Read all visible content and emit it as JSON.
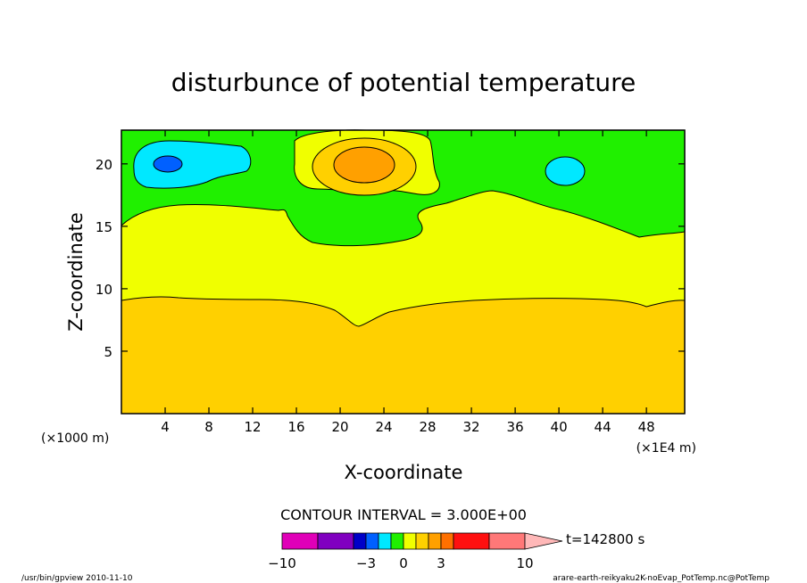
{
  "chart_data": {
    "type": "heatmap",
    "title": "disturbunce of potential temperature",
    "xlabel": "X-coordinate",
    "ylabel": "Z-coordinate",
    "x_unit_left": "(×1000 m)",
    "x_unit_right": "(×1E4 m)",
    "xlim": [
      0,
      51.5
    ],
    "ylim": [
      0,
      22.7
    ],
    "x_ticks": [
      4,
      8,
      12,
      16,
      20,
      24,
      28,
      32,
      36,
      40,
      44,
      48
    ],
    "y_ticks": [
      5,
      10,
      15,
      20
    ],
    "contour_interval_text": "CONTOUR INTERVAL = 3.000E+00",
    "time_label": "t=142800 s",
    "colorbar": {
      "tick_labels": [
        "-10",
        "-3",
        "0",
        "3",
        "10"
      ],
      "colors": [
        "#e000b8",
        "#8000c0",
        "#0000c8",
        "#0060ff",
        "#00e8ff",
        "#20f000",
        "#f0ff00",
        "#ffd000",
        "#ffa000",
        "#ff7000",
        "#ff1010",
        "#ff7878",
        "#ffb8b8"
      ]
    },
    "regions": [
      {
        "name": "band-lowest",
        "color": "#ffd000",
        "range": "0 to 3"
      },
      {
        "name": "band-middle",
        "color": "#f0ff00",
        "range": "0 to 3"
      },
      {
        "name": "band-upper",
        "color": "#20f000",
        "range": "-3 to 0"
      },
      {
        "name": "cold-cell-left",
        "color": "#00e8ff"
      },
      {
        "name": "cold-core-left",
        "color": "#0060ff"
      },
      {
        "name": "cold-cell-right",
        "color": "#00e8ff"
      },
      {
        "name": "warm-cell",
        "color": "#ffd000"
      },
      {
        "name": "warm-core",
        "color": "#ffa000"
      }
    ]
  },
  "footer": {
    "left": "/usr/bin/gpview   2010-11-10",
    "right": "arare-earth-reikyaku2K-noEvap_PotTemp.nc@PotTemp"
  }
}
